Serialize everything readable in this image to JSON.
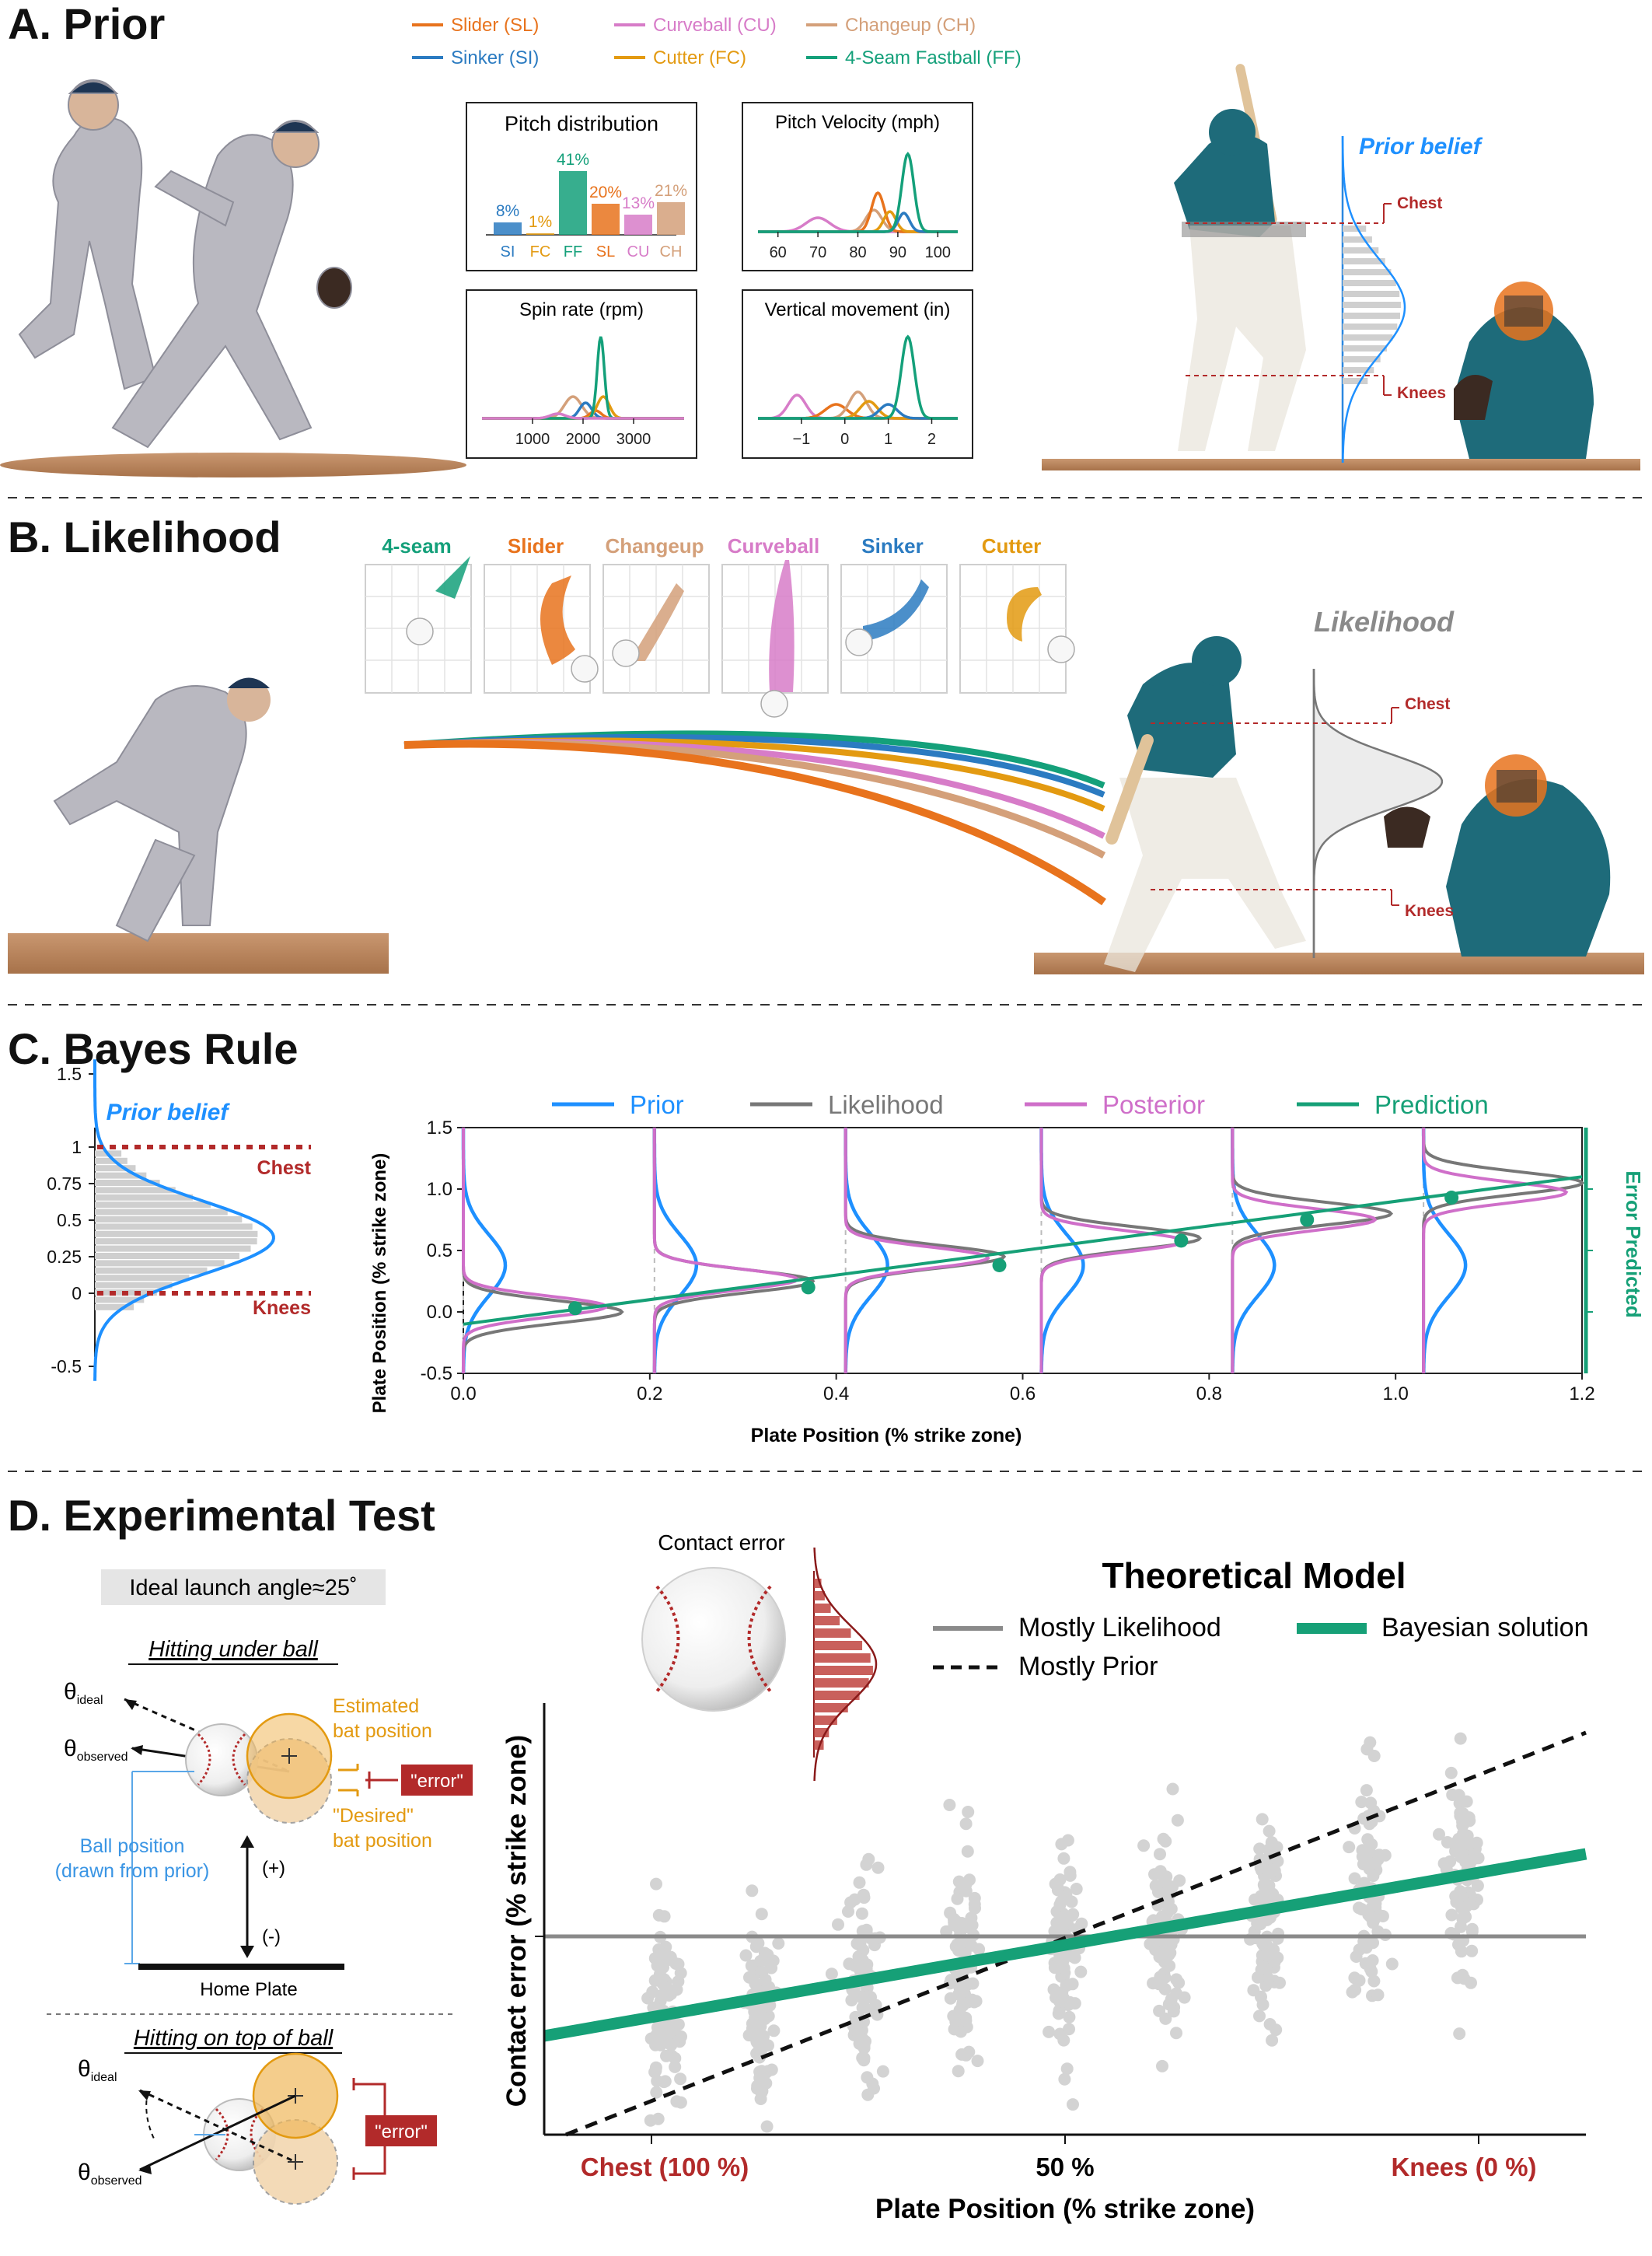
{
  "sections": {
    "a": "A. Prior",
    "b": "B. Likelihood",
    "c": "C. Bayes Rule",
    "d": "D. Experimental Test"
  },
  "colors": {
    "slider": "#e8731d",
    "sinker": "#2b7bc1",
    "curveball": "#d77cc8",
    "cutter": "#e39a11",
    "changeup": "#d4a07a",
    "fastball": "#14a07a",
    "prior": "#1e90ff",
    "likelihood": "#777777",
    "posterior": "#cf6fc9",
    "prediction": "#16a077",
    "accent_red": "#b22a2a",
    "scatter": "#d3d3d3",
    "jersey": "#1e6b7a",
    "pants": "#e9e5dc",
    "grey_uniform": "#b9b8c0",
    "dirt": "#b7835a"
  },
  "pitch_legend": [
    {
      "label": "Slider (SL)",
      "color": "slider"
    },
    {
      "label": "Sinker (SI)",
      "color": "sinker"
    },
    {
      "label": "Curveball (CU)",
      "color": "curveball"
    },
    {
      "label": "Cutter (FC)",
      "color": "cutter"
    },
    {
      "label": "Changeup (CH)",
      "color": "changeup"
    },
    {
      "label": "4-Seam Fastball (FF)",
      "color": "fastball"
    }
  ],
  "panel_a": {
    "dist_title": "Pitch distribution",
    "dist_bars": [
      {
        "code": "SI",
        "pct": "8%",
        "value": 8,
        "color": "sinker"
      },
      {
        "code": "FC",
        "pct": "1%",
        "value": 1,
        "color": "cutter"
      },
      {
        "code": "FF",
        "pct": "41%",
        "value": 41,
        "color": "fastball"
      },
      {
        "code": "SL",
        "pct": "20%",
        "value": 20,
        "color": "slider"
      },
      {
        "code": "CU",
        "pct": "13%",
        "value": 13,
        "color": "curveball"
      },
      {
        "code": "CH",
        "pct": "21%",
        "value": 21,
        "color": "changeup"
      }
    ],
    "velocity_title": "Pitch Velocity (mph)",
    "velocity_ticks": [
      "60",
      "70",
      "80",
      "90",
      "100"
    ],
    "spin_title": "Spin rate (rpm)",
    "spin_ticks": [
      "1000",
      "2000",
      "3000"
    ],
    "vert_title": "Vertical movement (in)",
    "vert_ticks": [
      "−1",
      "0",
      "1",
      "2"
    ],
    "prior_belief": "Prior belief",
    "chest": "Chest",
    "knees": "Knees"
  },
  "panel_b": {
    "pitch_types": [
      {
        "name": "4-seam",
        "color": "fastball"
      },
      {
        "name": "Slider",
        "color": "slider"
      },
      {
        "name": "Changeup",
        "color": "changeup"
      },
      {
        "name": "Curveball",
        "color": "curveball"
      },
      {
        "name": "Sinker",
        "color": "sinker"
      },
      {
        "name": "Cutter",
        "color": "cutter"
      }
    ],
    "likelihood": "Likelihood",
    "chest": "Chest",
    "knees": "Knees"
  },
  "panel_c": {
    "prior_belief": "Prior belief",
    "chest": "Chest",
    "knees": "Knees",
    "small_ticks": [
      "1.5",
      "1",
      "0.75",
      "0.5",
      "0.25",
      "0",
      "-0.5"
    ],
    "legend": [
      "Prior",
      "Likelihood",
      "Posterior",
      "Prediction"
    ],
    "right_label": "Error Predicted"
  },
  "chart_data": {
    "type": "line",
    "title": "",
    "xlabel": "Plate Position (% strike zone)",
    "ylabel": "Plate Position (% strike zone)",
    "xlim": [
      0.0,
      1.2
    ],
    "ylim": [
      -0.5,
      1.5
    ],
    "xticks": [
      "0.0",
      "0.2",
      "0.4",
      "0.6",
      "0.8",
      "1.0",
      "1.2"
    ],
    "yticks": [
      "1.5",
      "1.0",
      "0.5",
      "0.0",
      "-0.5"
    ],
    "series": [
      {
        "name": "Prediction",
        "x": [
          0.12,
          0.37,
          0.575,
          0.77,
          0.905,
          1.06
        ],
        "y": [
          0.03,
          0.2,
          0.38,
          0.58,
          0.75,
          0.93
        ]
      }
    ],
    "prediction_line": {
      "x": [
        0.0,
        1.2
      ],
      "y": [
        -0.1,
        1.1
      ]
    },
    "likelihood_means": [
      0.0,
      0.25,
      0.45,
      0.6,
      0.8,
      1.05
    ],
    "prior_mean": 0.38,
    "prior_sd": 0.25,
    "grid": false,
    "legend_position": "top"
  },
  "panel_d": {
    "ideal_angle": "Ideal launch angle≈25˚",
    "under_title": "Hitting under ball",
    "top_title": "Hitting on top of ball",
    "theta": "θ",
    "ideal_sub": "ideal",
    "observed_sub": "observed",
    "estimated": [
      "Estimated",
      "bat position"
    ],
    "desired": [
      "\"Desired\"",
      "bat position"
    ],
    "error": "\"error\"",
    "ball_position": [
      "Ball position",
      "(drawn from prior)"
    ],
    "plus": "(+)",
    "minus": "(-)",
    "home_plate": "Home Plate",
    "contact_error": "Contact error",
    "model_title": "Theoretical Model",
    "legend": [
      "Mostly Likelihood",
      "Bayesian solution",
      "Mostly Prior"
    ],
    "y_label": "Contact error (% strike zone)",
    "x_label": "Plate Position (% strike zone)",
    "x_ticks": [
      "Chest (100 %)",
      "50 %",
      "Knees (0 %)"
    ]
  }
}
